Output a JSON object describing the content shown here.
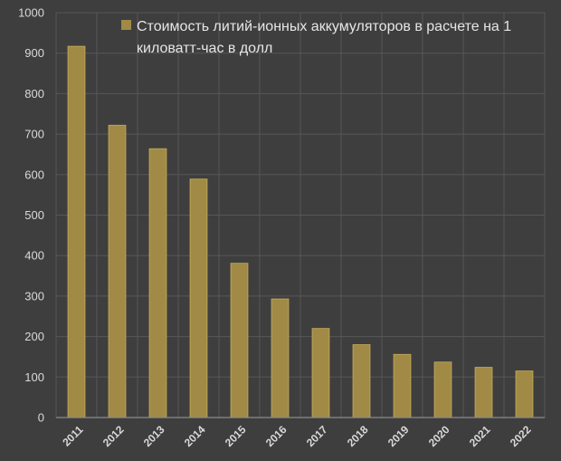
{
  "chart_data": {
    "type": "bar",
    "categories": [
      "2011",
      "2012",
      "2013",
      "2014",
      "2015",
      "2016",
      "2017",
      "2018",
      "2019",
      "2020",
      "2021",
      "2022"
    ],
    "series": [
      {
        "name": "Стоимость литий-ионных аккумуляторов в расчете на 1 киловатт-час в долл",
        "values": [
          917,
          722,
          664,
          589,
          381,
          293,
          220,
          180,
          156,
          137,
          124,
          115
        ],
        "color": "#a08a45"
      }
    ],
    "legend": {
      "position": "top-right",
      "lines": [
        "Стоимость литий-ионных аккумуляторов в расчете на 1",
        "киловатт-час в долл"
      ]
    },
    "ylim": [
      0,
      1000
    ],
    "yticks": [
      0,
      100,
      200,
      300,
      400,
      500,
      600,
      700,
      800,
      900,
      1000
    ],
    "grid": true,
    "colors": {
      "background": "#3e3e3e",
      "grid": "#575757",
      "axis": "#8c8c8c",
      "bar": "#a08a45",
      "bar_edge": "#c7ad5e",
      "text": "#d9d9d9"
    }
  }
}
